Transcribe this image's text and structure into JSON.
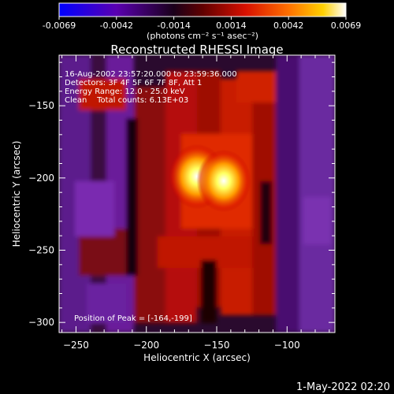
{
  "chart_data": {
    "type": "heatmap",
    "title": "Reconstructed RHESSI Image",
    "xlabel": "Heliocentric X (arcsec)",
    "ylabel": "Heliocentric Y (arcsec)",
    "xlim": [
      -262,
      -66
    ],
    "ylim": [
      -307,
      -115
    ],
    "x_ticks": [
      -250,
      -200,
      -150,
      -100
    ],
    "y_ticks": [
      -150,
      -200,
      -250,
      -300
    ],
    "colorbar": {
      "range": [
        -0.0069,
        0.0069
      ],
      "ticks": [
        "-0.0069",
        "-0.0042",
        "-0.0014",
        "0.0014",
        "0.0042",
        "0.0069"
      ],
      "unit_label": "(photons cm⁻² s⁻¹ asec⁻²)",
      "colormap": [
        "#0000ff",
        "#6a00a8",
        "#000000",
        "#c00000",
        "#ff5a00",
        "#ffd000",
        "#ffffff"
      ]
    },
    "annotations": [
      "16-Aug-2002 23:57:20.000 to 23:59:36.000",
      "Detectors: 3F 4F 5F 6F 7F 8F, Att 1",
      "Energy Range: 12.0 - 25.0 keV",
      "Clean    Total counts: 6.13E+03"
    ],
    "peak_label": "Position of Peak = [-164,-199]",
    "sources": [
      {
        "x": -164,
        "y": -199,
        "value": 0.0069
      },
      {
        "x": -145,
        "y": -202,
        "value": 0.0062
      }
    ]
  },
  "footer": {
    "timestamp": "1-May-2022 02:20"
  }
}
